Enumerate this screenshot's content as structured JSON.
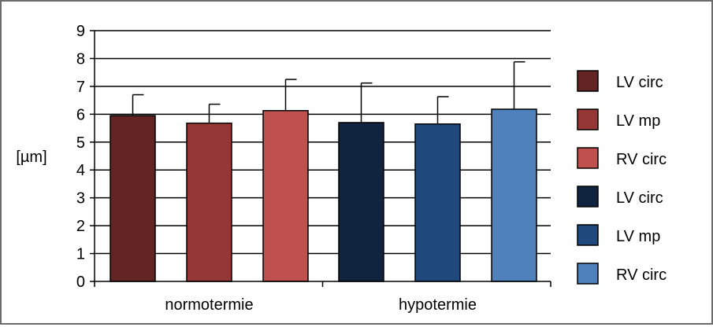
{
  "chart_data": {
    "type": "bar",
    "title": "",
    "xlabel": "",
    "ylabel": "[µm]",
    "ylim": [
      0,
      9
    ],
    "yticks": [
      0,
      1,
      2,
      3,
      4,
      5,
      6,
      7,
      8,
      9
    ],
    "grid": true,
    "legend_position": "right",
    "groups": [
      {
        "label": "normotermie",
        "bars": [
          {
            "name": "LV circ",
            "value": 5.95,
            "error": 0.75,
            "color": "#632523"
          },
          {
            "name": "LV mp",
            "value": 5.68,
            "error": 0.68,
            "color": "#953735"
          },
          {
            "name": "RV circ",
            "value": 6.13,
            "error": 1.12,
            "color": "#c0504d"
          }
        ]
      },
      {
        "label": "hypotermie",
        "bars": [
          {
            "name": "LV circ",
            "value": 5.7,
            "error": 1.42,
            "color": "#10243f"
          },
          {
            "name": "LV mp",
            "value": 5.65,
            "error": 0.98,
            "color": "#1f497d"
          },
          {
            "name": "RV circ",
            "value": 6.18,
            "error": 1.7,
            "color": "#4f81bd"
          }
        ]
      }
    ],
    "legend": [
      {
        "label": "LV circ",
        "color": "#632523"
      },
      {
        "label": "LV mp",
        "color": "#953735"
      },
      {
        "label": "RV circ",
        "color": "#c0504d"
      },
      {
        "label": "LV circ",
        "color": "#10243f"
      },
      {
        "label": "LV mp",
        "color": "#1f497d"
      },
      {
        "label": "RV circ",
        "color": "#4f81bd"
      }
    ]
  }
}
